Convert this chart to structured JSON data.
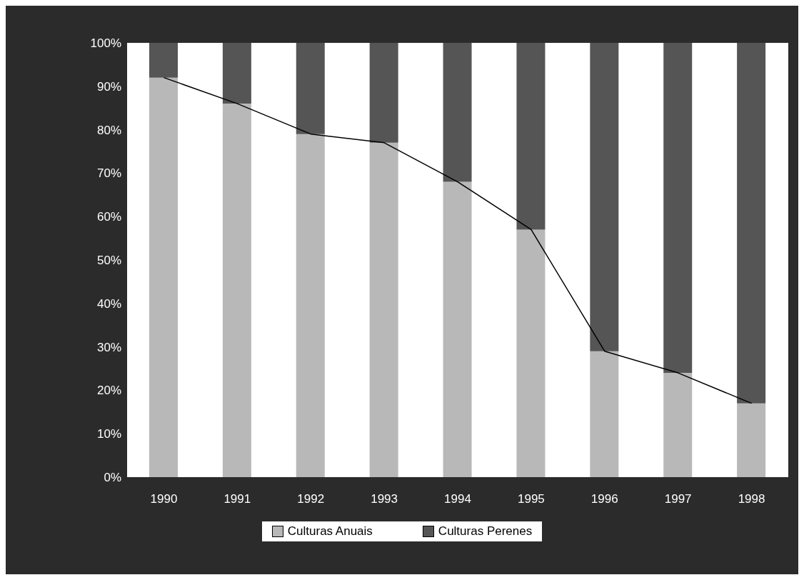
{
  "chart_data": {
    "type": "bar",
    "stacked": true,
    "categories": [
      "1990",
      "1991",
      "1992",
      "1993",
      "1994",
      "1995",
      "1996",
      "1997",
      "1998"
    ],
    "series": [
      {
        "name": "Culturas Anuais",
        "color": "#b8b8b8",
        "values": [
          92,
          86,
          79,
          77,
          68,
          57,
          29,
          24,
          17
        ]
      },
      {
        "name": "Culturas Perenes",
        "color": "#555555",
        "values": [
          8,
          14,
          21,
          23,
          32,
          43,
          71,
          76,
          83
        ]
      },
      {
        "type": "line",
        "color": "#000000",
        "values": [
          92,
          86,
          79,
          77,
          68,
          57,
          29,
          24,
          17
        ]
      }
    ],
    "ylim": [
      0,
      100
    ],
    "yticks": [
      {
        "value": 0,
        "label": "0%"
      },
      {
        "value": 10,
        "label": "10%"
      },
      {
        "value": 20,
        "label": "20%"
      },
      {
        "value": 30,
        "label": "30%"
      },
      {
        "value": 40,
        "label": "40%"
      },
      {
        "value": 50,
        "label": "50%"
      },
      {
        "value": 60,
        "label": "60%"
      },
      {
        "value": 70,
        "label": "70%"
      },
      {
        "value": 80,
        "label": "80%"
      },
      {
        "value": 90,
        "label": "90%"
      },
      {
        "value": 100,
        "label": "100%"
      }
    ],
    "marker": "none",
    "legend": "bottom"
  }
}
